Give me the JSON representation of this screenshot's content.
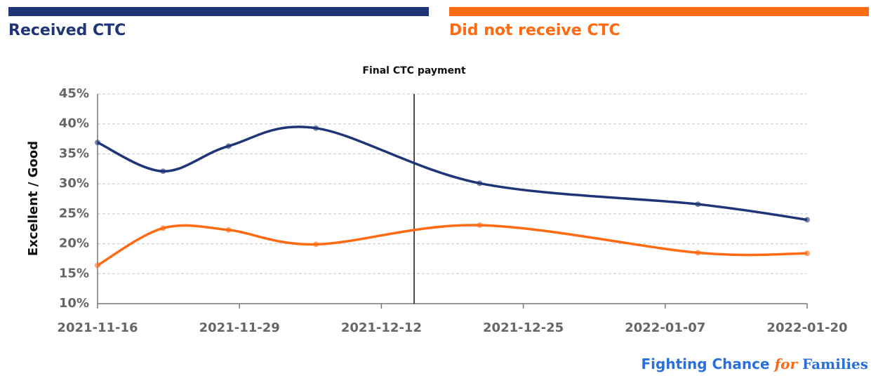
{
  "chart_data": {
    "type": "line",
    "y_label": "Excellent / Good",
    "x": [
      "2021-11-16",
      "2021-11-22",
      "2021-11-28",
      "2021-12-06",
      "2021-12-21",
      "2022-01-10",
      "2022-01-20"
    ],
    "series": [
      {
        "name": "Received CTC",
        "color": "#1f3577",
        "values": [
          36.9,
          32.1,
          36.3,
          39.3,
          30.1,
          26.6,
          24.0
        ]
      },
      {
        "name": "Did not receive CTC",
        "color": "#ff6a13",
        "values": [
          16.4,
          22.6,
          22.3,
          19.9,
          23.1,
          18.5,
          18.4
        ]
      }
    ],
    "xlim": [
      "2021-11-16",
      "2022-01-20"
    ],
    "xticks": [
      "2021-11-16",
      "2021-11-29",
      "2021-12-12",
      "2021-12-25",
      "2022-01-07",
      "2022-01-20"
    ],
    "ylim": [
      10,
      45
    ],
    "yticks": [
      {
        "value": 10,
        "label": "10%"
      },
      {
        "value": 15,
        "label": "15%"
      },
      {
        "value": 20,
        "label": "20%"
      },
      {
        "value": 25,
        "label": "25%"
      },
      {
        "value": 30,
        "label": "30%"
      },
      {
        "value": 35,
        "label": "35%"
      },
      {
        "value": 40,
        "label": "40%"
      },
      {
        "value": 45,
        "label": "45%"
      }
    ],
    "grid": true,
    "smooth": true,
    "annotation": {
      "label": "Final CTC payment",
      "x": "2021-12-15"
    },
    "credit": [
      "Fighting Chance ",
      "for",
      " Families"
    ]
  }
}
